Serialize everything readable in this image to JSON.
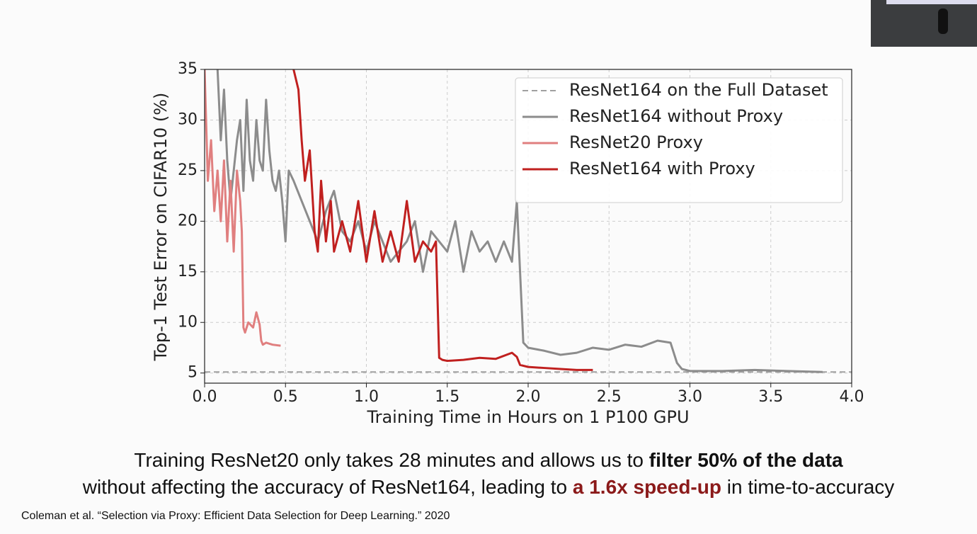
{
  "chart_data": {
    "type": "line",
    "xlabel": "Training Time in Hours on 1 P100 GPU",
    "ylabel": "Top-1 Test Error on CIFAR10 (%)",
    "xlim": [
      0,
      4
    ],
    "ylim": [
      4,
      35
    ],
    "xticks": [
      {
        "value": 0,
        "label": "0.0"
      },
      0.5,
      {
        "value": 1,
        "label": "1.0"
      },
      1.5,
      {
        "value": 2,
        "label": "2.0"
      },
      2.5,
      {
        "value": 3,
        "label": "3.0"
      },
      3.5,
      {
        "value": 4,
        "label": "4.0"
      }
    ],
    "yticks": [
      5,
      10,
      15,
      20,
      25,
      30,
      35
    ],
    "grid": true,
    "legend": "upper right",
    "series": [
      {
        "name": "ResNet164 on the Full Dataset",
        "color": "#a0a0a0",
        "style": "dashed",
        "x": [
          0,
          4
        ],
        "values": [
          5.1,
          5.1
        ]
      },
      {
        "name": "ResNet164 without Proxy",
        "color": "#8c8c8c",
        "style": "solid",
        "x": [
          0.08,
          0.1,
          0.12,
          0.14,
          0.16,
          0.18,
          0.2,
          0.22,
          0.24,
          0.26,
          0.28,
          0.3,
          0.32,
          0.34,
          0.36,
          0.38,
          0.4,
          0.42,
          0.44,
          0.46,
          0.48,
          0.5,
          0.52,
          0.55,
          0.6,
          0.65,
          0.7,
          0.75,
          0.8,
          0.85,
          0.9,
          0.95,
          1.0,
          1.05,
          1.1,
          1.15,
          1.2,
          1.25,
          1.3,
          1.35,
          1.4,
          1.45,
          1.5,
          1.55,
          1.6,
          1.65,
          1.7,
          1.75,
          1.8,
          1.85,
          1.9,
          1.93,
          1.95,
          1.97,
          2.0,
          2.1,
          2.2,
          2.3,
          2.4,
          2.5,
          2.6,
          2.7,
          2.8,
          2.88,
          2.92,
          2.95,
          3.0,
          3.2,
          3.4,
          3.6,
          3.82
        ],
        "values": [
          35,
          28,
          33,
          26,
          22,
          25,
          28,
          30,
          23,
          32,
          26,
          24,
          30,
          26,
          25,
          32,
          27,
          24,
          23,
          25,
          22,
          18,
          25,
          24,
          22,
          20,
          18,
          21,
          23,
          19,
          18,
          20,
          17,
          20,
          18,
          16,
          17,
          18,
          20,
          15,
          19,
          18,
          17,
          20,
          15,
          19,
          17,
          18,
          16,
          18,
          16,
          22,
          15,
          8,
          7.5,
          7.2,
          6.8,
          7.0,
          7.5,
          7.3,
          7.8,
          7.6,
          8.2,
          8.0,
          6.0,
          5.4,
          5.2,
          5.2,
          5.3,
          5.2,
          5.1
        ]
      },
      {
        "name": "ResNet20 Proxy",
        "color": "#e07f7f",
        "style": "solid",
        "x": [
          0,
          0.02,
          0.04,
          0.06,
          0.08,
          0.1,
          0.12,
          0.14,
          0.16,
          0.18,
          0.2,
          0.22,
          0.23,
          0.24,
          0.25,
          0.27,
          0.3,
          0.32,
          0.34,
          0.35,
          0.36,
          0.38,
          0.42,
          0.47
        ],
        "values": [
          35,
          24,
          28,
          21,
          25,
          20,
          26,
          18,
          24,
          17,
          25,
          22,
          19,
          9.5,
          9.0,
          10,
          9.5,
          11,
          9.8,
          8.2,
          7.8,
          8.0,
          7.8,
          7.7
        ]
      },
      {
        "name": "ResNet164 with Proxy",
        "color": "#c0201f",
        "style": "solid",
        "x": [
          0.55,
          0.58,
          0.6,
          0.62,
          0.65,
          0.68,
          0.7,
          0.72,
          0.75,
          0.78,
          0.8,
          0.85,
          0.9,
          0.95,
          1.0,
          1.05,
          1.1,
          1.15,
          1.2,
          1.25,
          1.3,
          1.35,
          1.4,
          1.43,
          1.45,
          1.47,
          1.5,
          1.6,
          1.7,
          1.8,
          1.9,
          1.93,
          1.95,
          2.0,
          2.1,
          2.2,
          2.3,
          2.4
        ],
        "values": [
          35,
          33,
          28,
          24,
          27,
          19,
          17,
          24,
          18,
          22,
          17,
          20,
          17,
          22,
          16,
          21,
          16,
          19,
          16,
          22,
          16,
          18,
          17,
          18,
          6.5,
          6.3,
          6.2,
          6.3,
          6.5,
          6.4,
          7.0,
          6.6,
          5.8,
          5.6,
          5.5,
          5.4,
          5.3,
          5.3
        ]
      }
    ]
  },
  "caption": {
    "line1_plain": "Training ResNet20 only takes 28 minutes and allows us to",
    "line1_bold": "filter 50% of the data",
    "line2_plain": "without affecting the accuracy of ResNet164, leading to",
    "line2_highlight": "a 1.6x speed-up",
    "line2_end": "in time-to-accuracy"
  },
  "citation": "Coleman et al. “Selection via Proxy: Efficient Data Selection for Deep Learning.” 2020"
}
